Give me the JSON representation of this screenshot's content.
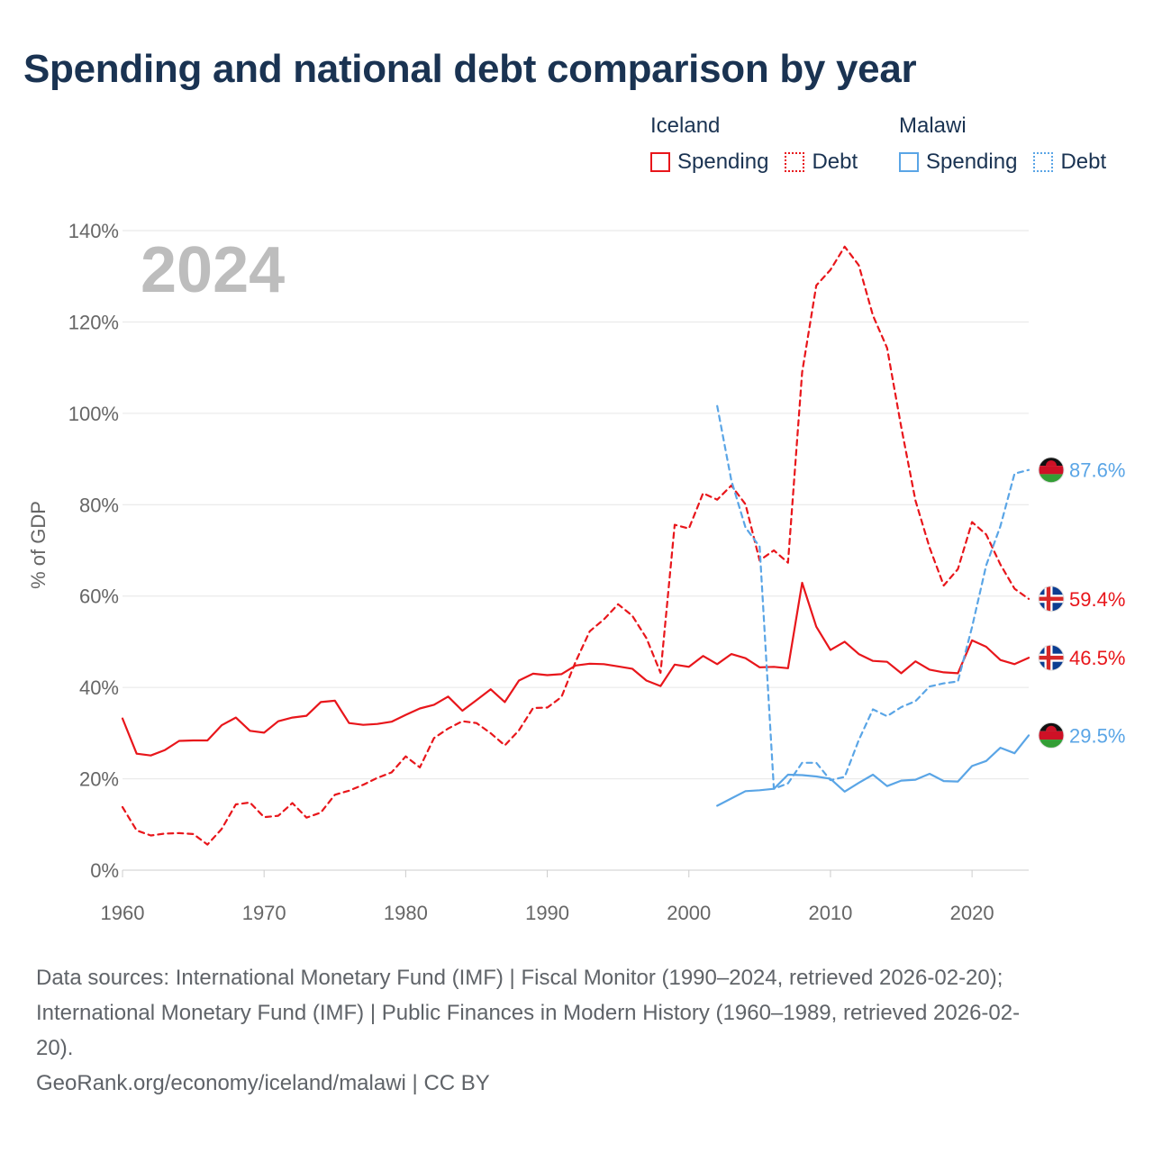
{
  "title": "Spending and national debt comparison by year",
  "legend": {
    "groups": [
      {
        "country": "Iceland",
        "items": [
          {
            "label": "Spending",
            "style": "solid"
          },
          {
            "label": "Debt",
            "style": "dotted"
          }
        ],
        "color": "#e8161b"
      },
      {
        "country": "Malawi",
        "items": [
          {
            "label": "Spending",
            "style": "solid"
          },
          {
            "label": "Debt",
            "style": "dotted"
          }
        ],
        "color": "#5aa5e6"
      }
    ]
  },
  "colors": {
    "iceland": "#e8161b",
    "malawi": "#5aa5e6",
    "grid": "#e6e6e6",
    "axis_text": "#666666",
    "year_watermark": "#bdbdbd"
  },
  "chart_data": {
    "type": "line",
    "ylabel": "% of GDP",
    "xlim": [
      1960,
      2024
    ],
    "ylim": [
      0,
      140
    ],
    "xticks": [
      1960,
      1970,
      1980,
      1990,
      2000,
      2010,
      2020
    ],
    "yticks": [
      0,
      20,
      40,
      60,
      80,
      100,
      120,
      140
    ],
    "ytick_labels": [
      "0%",
      "20%",
      "40%",
      "60%",
      "80%",
      "100%",
      "120%",
      "140%"
    ],
    "year_label": "2024",
    "series": [
      {
        "name": "Iceland Spending",
        "country": "Iceland",
        "metric": "Spending",
        "style": "solid",
        "color": "#e8161b",
        "end_label": "46.5%",
        "flag": "iceland",
        "x": [
          1960,
          1961,
          1962,
          1963,
          1964,
          1965,
          1966,
          1967,
          1968,
          1969,
          1970,
          1971,
          1972,
          1973,
          1974,
          1975,
          1976,
          1977,
          1978,
          1979,
          1980,
          1981,
          1982,
          1983,
          1984,
          1985,
          1986,
          1987,
          1988,
          1989,
          1990,
          1991,
          1992,
          1993,
          1994,
          1995,
          1996,
          1997,
          1998,
          1999,
          2000,
          2001,
          2002,
          2003,
          2004,
          2005,
          2006,
          2007,
          2008,
          2009,
          2010,
          2011,
          2012,
          2013,
          2014,
          2015,
          2016,
          2017,
          2018,
          2019,
          2020,
          2021,
          2022,
          2023,
          2024
        ],
        "y": [
          33.2,
          25.5,
          25.1,
          26.3,
          28.3,
          28.4,
          28.4,
          31.7,
          33.4,
          30.5,
          30.1,
          32.6,
          33.4,
          33.8,
          36.8,
          37.1,
          32.2,
          31.8,
          32.0,
          32.5,
          34.0,
          35.4,
          36.2,
          38.0,
          34.9,
          37.2,
          39.6,
          36.8,
          41.5,
          43.0,
          42.7,
          42.9,
          44.8,
          45.2,
          45.1,
          44.6,
          44.1,
          41.5,
          40.3,
          45.0,
          44.5,
          46.9,
          45.1,
          47.3,
          46.4,
          44.4,
          44.5,
          44.2,
          62.9,
          53.3,
          48.2,
          50.0,
          47.3,
          45.8,
          45.6,
          43.1,
          45.7,
          43.9,
          43.3,
          43.1,
          50.3,
          48.9,
          46.0,
          45.1,
          46.5
        ]
      },
      {
        "name": "Iceland Debt",
        "country": "Iceland",
        "metric": "Debt",
        "style": "dotted",
        "color": "#e8161b",
        "end_label": "59.4%",
        "flag": "iceland",
        "x": [
          1960,
          1961,
          1962,
          1963,
          1964,
          1965,
          1966,
          1967,
          1968,
          1969,
          1970,
          1971,
          1972,
          1973,
          1974,
          1975,
          1976,
          1977,
          1978,
          1979,
          1980,
          1981,
          1982,
          1983,
          1984,
          1985,
          1986,
          1987,
          1988,
          1989,
          1990,
          1991,
          1992,
          1993,
          1994,
          1995,
          1996,
          1997,
          1998,
          1999,
          2000,
          2001,
          2002,
          2003,
          2004,
          2005,
          2006,
          2007,
          2008,
          2009,
          2010,
          2011,
          2012,
          2013,
          2014,
          2015,
          2016,
          2017,
          2018,
          2019,
          2020,
          2021,
          2022,
          2023,
          2024
        ],
        "y": [
          13.8,
          8.7,
          7.6,
          8.0,
          8.1,
          7.9,
          5.6,
          9.0,
          14.4,
          14.8,
          11.6,
          11.9,
          14.7,
          11.5,
          12.6,
          16.5,
          17.4,
          18.7,
          20.2,
          21.4,
          24.9,
          22.5,
          28.9,
          31.0,
          32.6,
          32.2,
          30.0,
          27.3,
          30.6,
          35.5,
          35.6,
          37.9,
          45.6,
          52.3,
          54.9,
          58.2,
          55.7,
          50.8,
          43.2,
          75.6,
          74.8,
          82.5,
          81.1,
          84.2,
          80.1,
          67.8,
          70.0,
          67.3,
          109.0,
          128.0,
          131.4,
          136.5,
          132.4,
          121.4,
          114.3,
          97.0,
          80.9,
          70.6,
          62.3,
          65.9,
          76.2,
          73.5,
          66.9,
          61.6,
          59.4
        ]
      },
      {
        "name": "Malawi Spending",
        "country": "Malawi",
        "metric": "Spending",
        "style": "solid",
        "color": "#5aa5e6",
        "end_label": "29.5%",
        "flag": "malawi",
        "x": [
          2002,
          2003,
          2004,
          2005,
          2006,
          2007,
          2008,
          2009,
          2010,
          2011,
          2012,
          2013,
          2014,
          2015,
          2016,
          2017,
          2018,
          2019,
          2020,
          2021,
          2022,
          2023,
          2024
        ],
        "y": [
          14.1,
          15.7,
          17.3,
          17.5,
          17.8,
          20.9,
          20.8,
          20.5,
          20.0,
          17.2,
          19.1,
          20.9,
          18.4,
          19.6,
          19.8,
          21.1,
          19.5,
          19.4,
          22.8,
          23.9,
          26.8,
          25.6,
          29.5
        ]
      },
      {
        "name": "Malawi Debt",
        "country": "Malawi",
        "metric": "Debt",
        "style": "dotted",
        "color": "#5aa5e6",
        "end_label": "87.6%",
        "flag": "malawi",
        "x": [
          2002,
          2003,
          2004,
          2005,
          2006,
          2007,
          2008,
          2009,
          2010,
          2011,
          2012,
          2013,
          2014,
          2015,
          2016,
          2017,
          2018,
          2019,
          2020,
          2021,
          2022,
          2023,
          2024
        ],
        "y": [
          101.6,
          85.3,
          75.0,
          70.8,
          17.8,
          19.0,
          23.5,
          23.5,
          19.7,
          20.4,
          28.5,
          35.2,
          33.7,
          35.7,
          37.0,
          40.2,
          40.9,
          41.3,
          53.2,
          66.7,
          75.3,
          86.8,
          87.6
        ]
      }
    ]
  },
  "sources": {
    "line1": "Data sources: International Monetary Fund (IMF) | Fiscal Monitor (1990–2024, retrieved 2026-02-20);",
    "line2": "International Monetary Fund (IMF) | Public Finances in Modern History (1960–1989, retrieved 2026-02-",
    "line3": "20).",
    "line4": "GeoRank.org/economy/iceland/malawi | CC BY"
  }
}
